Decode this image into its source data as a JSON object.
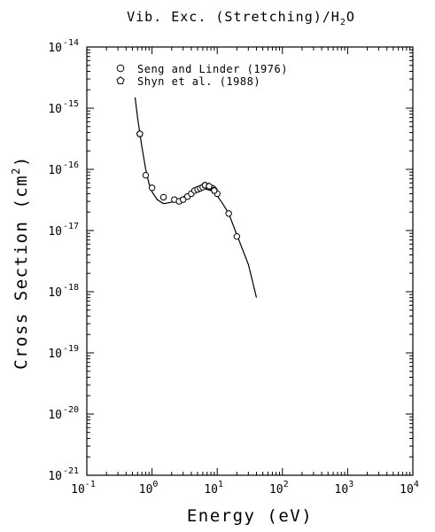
{
  "chart_data": {
    "type": "scatter",
    "title": "Vib. Exc. (Stretching)/H2O",
    "xlabel": "Energy (eV)",
    "ylabel": "Cross Section (cm2)",
    "x_scale": "log",
    "y_scale": "log",
    "xlim": [
      0.1,
      10000
    ],
    "ylim": [
      1e-21,
      1e-14
    ],
    "x_ticks": [
      {
        "base": "10",
        "exp": "-1"
      },
      {
        "base": "10",
        "exp": "0"
      },
      {
        "base": "10",
        "exp": "1"
      },
      {
        "base": "10",
        "exp": "2"
      },
      {
        "base": "10",
        "exp": "3"
      },
      {
        "base": "10",
        "exp": "4"
      }
    ],
    "y_ticks": [
      {
        "base": "10",
        "exp": "-14"
      },
      {
        "base": "10",
        "exp": "-15"
      },
      {
        "base": "10",
        "exp": "-16"
      },
      {
        "base": "10",
        "exp": "-17"
      },
      {
        "base": "10",
        "exp": "-18"
      },
      {
        "base": "10",
        "exp": "-19"
      },
      {
        "base": "10",
        "exp": "-20"
      },
      {
        "base": "10",
        "exp": "-21"
      }
    ],
    "legend_position": "top-left",
    "grid": false,
    "series": [
      {
        "name": "Seng and Linder (1976)",
        "marker": "circle",
        "points": [
          [
            0.65,
            3.8e-16
          ],
          [
            0.8,
            8e-17
          ],
          [
            1.0,
            5e-17
          ],
          [
            1.5,
            3.5e-17
          ],
          [
            2.2,
            3.2e-17
          ],
          [
            2.6,
            3e-17
          ],
          [
            3.0,
            3.2e-17
          ],
          [
            3.5,
            3.6e-17
          ],
          [
            4.0,
            4e-17
          ],
          [
            4.5,
            4.5e-17
          ],
          [
            5.0,
            4.7e-17
          ],
          [
            5.5,
            4.9e-17
          ],
          [
            6.0,
            5.1e-17
          ],
          [
            6.5,
            5.5e-17
          ],
          [
            7.0,
            5.2e-17
          ],
          [
            7.5,
            5.1e-17
          ],
          [
            8.0,
            5e-17
          ],
          [
            8.5,
            4.9e-17
          ],
          [
            9.0,
            4.6e-17
          ],
          [
            10.0,
            4e-17
          ],
          [
            15.0,
            1.9e-17
          ],
          [
            20.0,
            8e-18
          ]
        ]
      },
      {
        "name": "Shyn et al. (1988)",
        "marker": "pentagon",
        "points": [
          [
            0.65,
            3.8e-16
          ],
          [
            6.5,
            5.5e-17
          ],
          [
            7.5,
            5.3e-17
          ],
          [
            9.0,
            4.5e-17
          ]
        ]
      },
      {
        "name": "",
        "type": "line",
        "points": [
          [
            0.55,
            1.5e-15
          ],
          [
            0.6,
            7e-16
          ],
          [
            0.65,
            3.9e-16
          ],
          [
            0.7,
            2.3e-16
          ],
          [
            0.8,
            1e-16
          ],
          [
            0.9,
            5.8e-17
          ],
          [
            1.0,
            4.3e-17
          ],
          [
            1.2,
            3.2e-17
          ],
          [
            1.5,
            2.75e-17
          ],
          [
            2.0,
            2.9e-17
          ],
          [
            2.5,
            3.2e-17
          ],
          [
            3.0,
            3.55e-17
          ],
          [
            4.0,
            4.2e-17
          ],
          [
            5.0,
            4.7e-17
          ],
          [
            6.0,
            5e-17
          ],
          [
            7.0,
            5.1e-17
          ],
          [
            8.0,
            4.9e-17
          ],
          [
            9.0,
            4.3e-17
          ],
          [
            10.0,
            3.7e-17
          ],
          [
            12.0,
            2.8e-17
          ],
          [
            15.0,
            1.9e-17
          ],
          [
            20.0,
            8.5e-18
          ],
          [
            30.0,
            2.8e-18
          ],
          [
            40.0,
            8e-19
          ]
        ]
      }
    ]
  }
}
